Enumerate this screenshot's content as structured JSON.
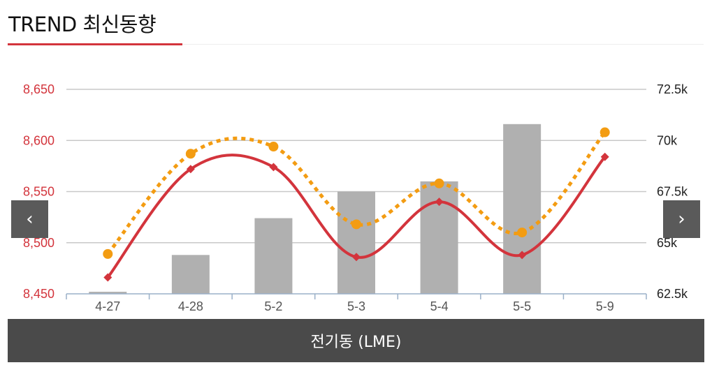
{
  "header": {
    "title": "TREND 최신동향"
  },
  "nav": {
    "prev_icon": "chevron-left-icon",
    "prev_glyph": "‹",
    "next_icon": "chevron-right-icon",
    "next_glyph": "›"
  },
  "footer": {
    "label": "전기동 (LME)"
  },
  "colors": {
    "accent": "#d3343c",
    "dotted": "#f39c12",
    "bar": "#b0b0b0",
    "footer": "#4a4a4a",
    "nav": "#5a5a5a"
  },
  "chart_data": {
    "type": "bar",
    "categories": [
      "4-27",
      "4-28",
      "5-2",
      "5-3",
      "5-4",
      "5-5",
      "5-9"
    ],
    "y_left": {
      "ticks": [
        "8,450",
        "8,500",
        "8,550",
        "8,600",
        "8,650"
      ],
      "range": [
        8450,
        8650
      ]
    },
    "y_right": {
      "ticks": [
        "62.5k",
        "65k",
        "67.5k",
        "70k",
        "72.5k"
      ],
      "range": [
        62500,
        72500
      ]
    },
    "grid": true,
    "series": [
      {
        "type": "bar",
        "axis": "right",
        "values": [
          62600,
          64400,
          66200,
          67500,
          68000,
          70800,
          null
        ]
      },
      {
        "type": "line",
        "style": "solid",
        "axis": "left",
        "values": [
          8466,
          8572,
          8574,
          8486,
          8540,
          8488,
          8584
        ]
      },
      {
        "type": "line",
        "style": "dotted",
        "axis": "left",
        "values": [
          8489,
          8587,
          8594,
          8518,
          8558,
          8510,
          8608
        ]
      }
    ]
  }
}
